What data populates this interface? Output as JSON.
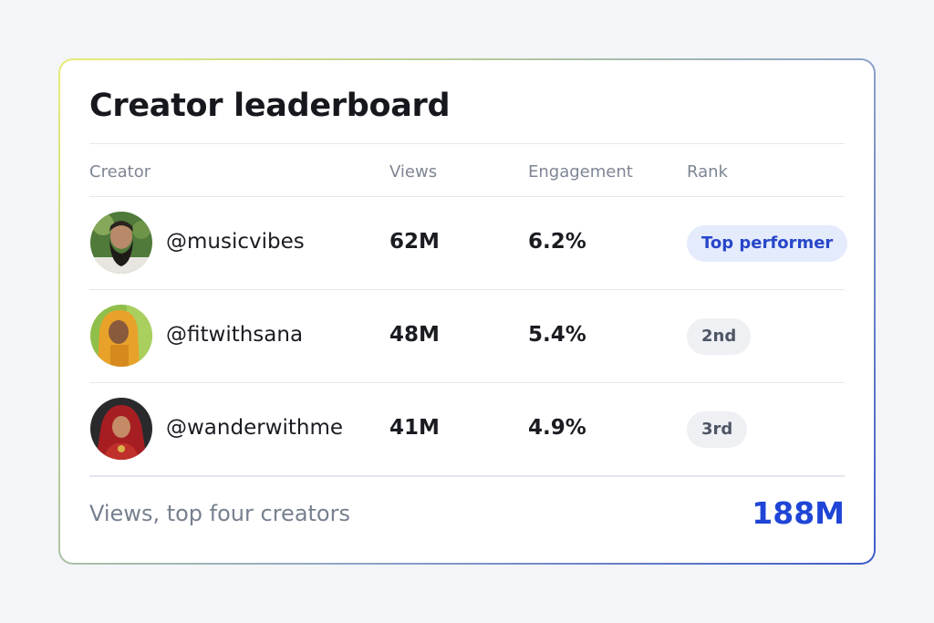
{
  "card": {
    "title": "Creator leaderboard",
    "columns": {
      "creator": "Creator",
      "views": "Views",
      "engagement": "Engagement",
      "rank": "Rank"
    },
    "rows": [
      {
        "handle": "@musicvibes",
        "views": "62M",
        "engagement": "6.2%",
        "rank": "Top performer"
      },
      {
        "handle": "@fitwithsana",
        "views": "48M",
        "engagement": "5.4%",
        "rank": "2nd"
      },
      {
        "handle": "@wanderwithme",
        "views": "41M",
        "engagement": "4.9%",
        "rank": "3rd"
      }
    ],
    "footer": {
      "label": "Views, top four creators",
      "value": "188M"
    }
  },
  "colors": {
    "accent": "#1f45d6",
    "badge_top_bg": "#e4ebfc",
    "badge_gray_bg": "#eef0f4"
  }
}
